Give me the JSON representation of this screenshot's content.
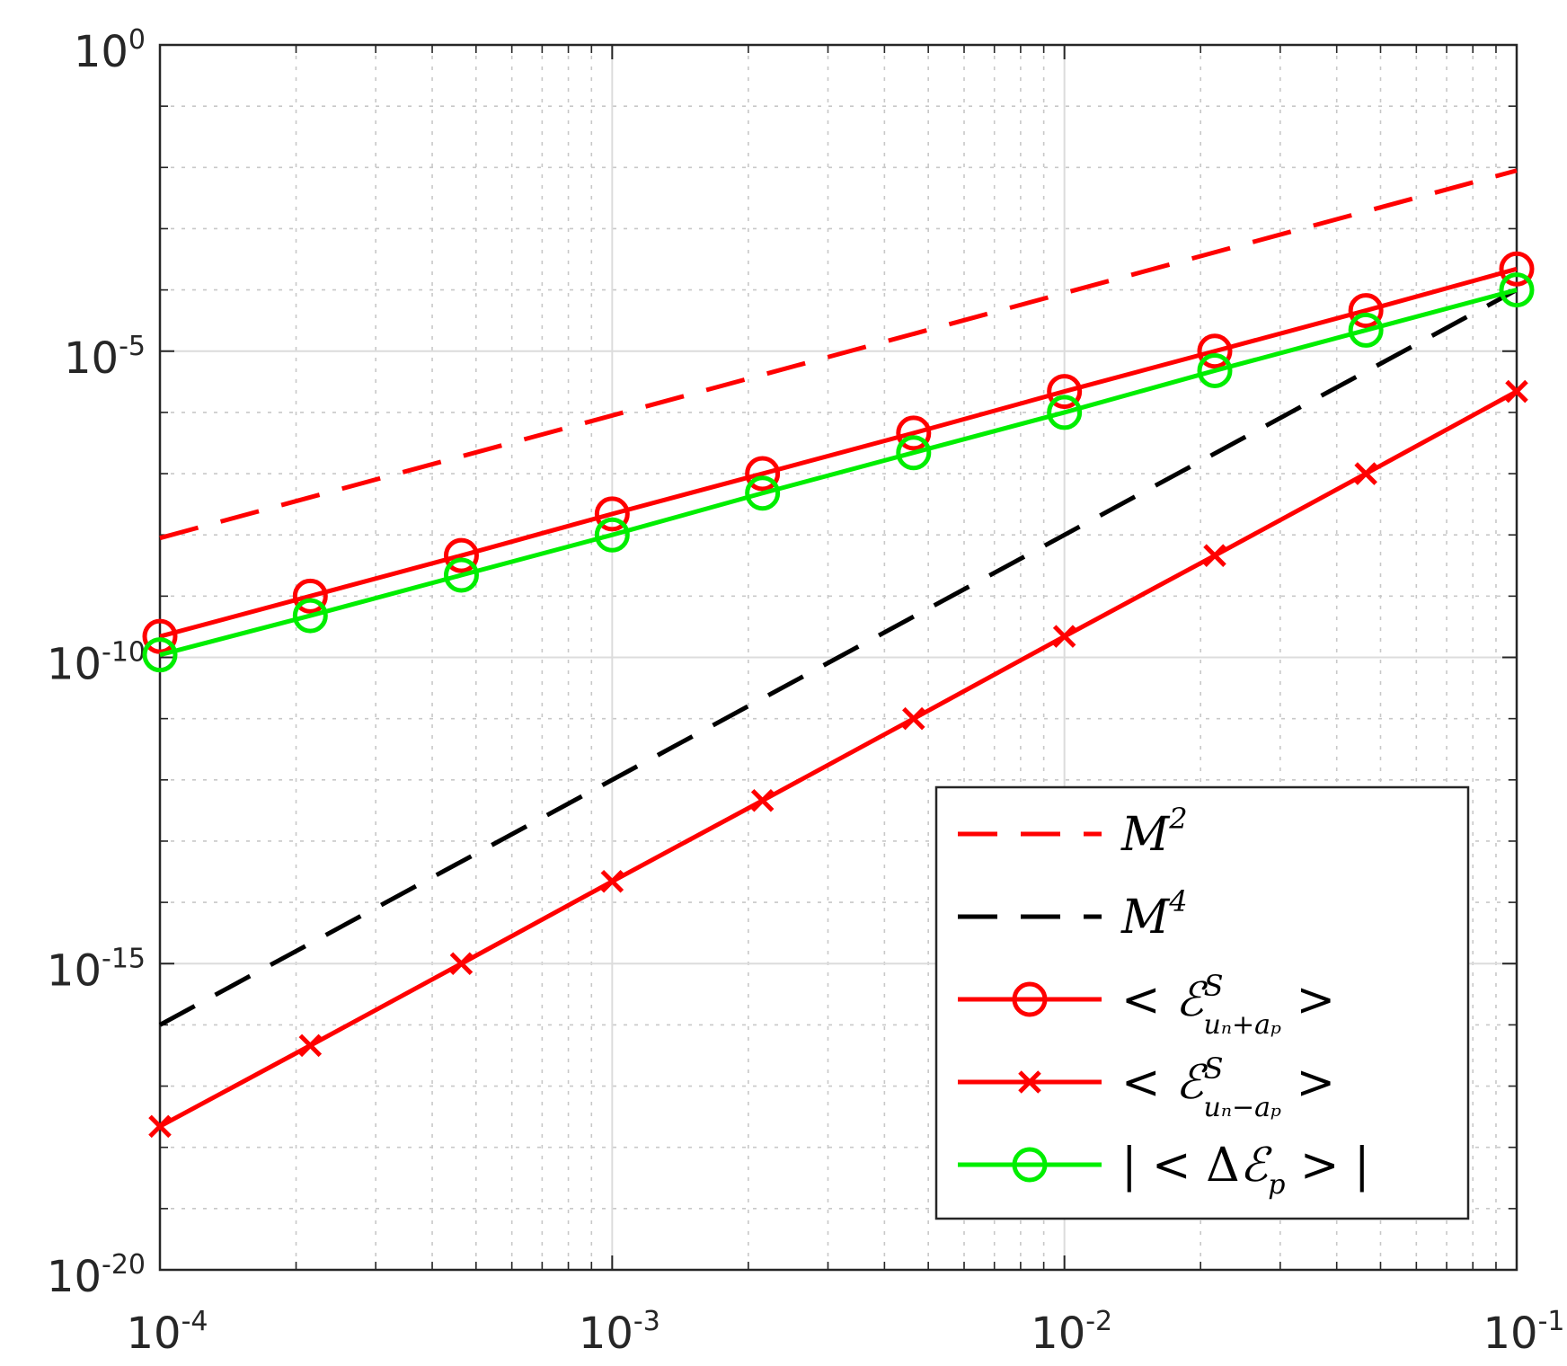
{
  "chart_data": {
    "type": "line",
    "xscale": "log",
    "yscale": "log",
    "xlim": [
      0.0001,
      0.1
    ],
    "ylim": [
      1e-20,
      1
    ],
    "xticks": [
      {
        "base": "10",
        "exp": "-4",
        "value": 0.0001
      },
      {
        "base": "10",
        "exp": "-3",
        "value": 0.001
      },
      {
        "base": "10",
        "exp": "-2",
        "value": 0.01
      },
      {
        "base": "10",
        "exp": "-1",
        "value": 0.1
      }
    ],
    "yticks": [
      {
        "base": "10",
        "exp": "0",
        "value": 1
      },
      {
        "base": "10",
        "exp": "-5",
        "value": 1e-05
      },
      {
        "base": "10",
        "exp": "-10",
        "value": 1e-10
      },
      {
        "base": "10",
        "exp": "-15",
        "value": 1e-15
      },
      {
        "base": "10",
        "exp": "-20",
        "value": 1e-20
      }
    ],
    "grid": true,
    "legend_position": "lower-right",
    "x": [
      0.0001,
      0.000215,
      0.000464,
      0.001,
      0.00215,
      0.00464,
      0.01,
      0.0215,
      0.0464,
      0.1
    ],
    "series": [
      {
        "key": "m2",
        "legend": {
          "main": "M",
          "sup": "2"
        },
        "color": "#ff0000",
        "style": "dashed",
        "marker": "none",
        "x": [
          0.0001,
          0.1
        ],
        "y": [
          8.9e-09,
          0.0089
        ]
      },
      {
        "key": "m4",
        "legend": {
          "main": "M",
          "sup": "4"
        },
        "color": "#000000",
        "style": "dashed",
        "marker": "none",
        "x": [
          0.0001,
          0.1
        ],
        "y": [
          1e-16,
          0.0001
        ]
      },
      {
        "key": "plus",
        "legend": {
          "prefix": "< ",
          "main": "ℰ",
          "sup": "S",
          "sub": "uₙ+aₚ",
          "suffix": " >"
        },
        "color": "#ff0000",
        "style": "solid",
        "marker": "circle",
        "y": [
          2.2e-10,
          1e-09,
          4.6e-09,
          2.2e-08,
          1e-07,
          4.6e-07,
          2.2e-06,
          1e-05,
          4.6e-05,
          0.00022
        ]
      },
      {
        "key": "minus",
        "legend": {
          "prefix": "< ",
          "main": "ℰ",
          "sup": "S",
          "sub": "uₙ−aₚ",
          "suffix": " >"
        },
        "color": "#ff0000",
        "style": "solid",
        "marker": "x",
        "y": [
          2.2e-18,
          4.6e-17,
          1e-15,
          2.2e-14,
          4.6e-13,
          1e-11,
          2.2e-10,
          4.6e-09,
          1e-07,
          2.2e-06
        ]
      },
      {
        "key": "delta",
        "legend": {
          "prefix": "| < Δ",
          "main": "ℰ",
          "sub": "p",
          "suffix": " > |"
        },
        "color": "#00ee00",
        "style": "solid",
        "marker": "circle",
        "y": [
          1.1e-10,
          4.8e-10,
          2.2e-09,
          1e-08,
          4.8e-08,
          2.2e-07,
          1e-06,
          4.8e-06,
          2.2e-05,
          0.0001
        ]
      }
    ]
  }
}
